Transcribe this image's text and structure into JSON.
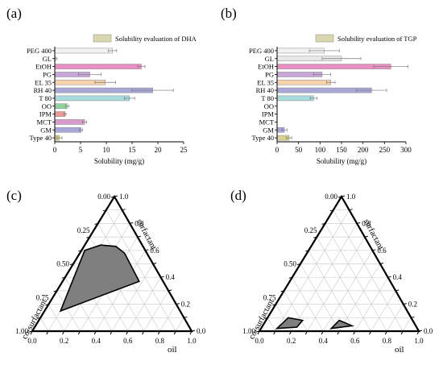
{
  "chart_data": [
    {
      "panel": "(a)",
      "type": "bar",
      "orientation": "horizontal",
      "legend": "Solubility evaluation of DHA",
      "legend_position": "top-right",
      "xlabel": "Solubility (mg/g)",
      "xlim": [
        0,
        25
      ],
      "xticks": [
        "0",
        "5",
        "10",
        "15",
        "20",
        "25"
      ],
      "categories": [
        "PEG 400",
        "GL",
        "EtOH",
        "PG",
        "EL 35",
        "RH 40",
        "T 80",
        "OO",
        "IPM",
        "MCT",
        "GM",
        "Type 40"
      ],
      "values": [
        11.2,
        0.15,
        16.8,
        6.8,
        9.8,
        19.0,
        14.5,
        2.4,
        2.0,
        5.8,
        5.1,
        0.9
      ],
      "errors": [
        0.8,
        0.3,
        0.7,
        2.2,
        2.0,
        4.0,
        1.0,
        0.3,
        0.2,
        0.4,
        0.3,
        0.5
      ],
      "colors": [
        "#f2f2f2",
        "#e8e8e8",
        "#ea8fc1",
        "#c8a6d8",
        "#f8d2ac",
        "#a9a7d6",
        "#a8dcdc",
        "#8fd39a",
        "#ea9a95",
        "#d89ccc",
        "#a9a7d9",
        "#d9d190"
      ]
    },
    {
      "panel": "(b)",
      "type": "bar",
      "orientation": "horizontal",
      "legend": "Solubility evaluation of TGP",
      "legend_position": "top-right",
      "xlabel": "Solubility (mg/g)",
      "xlim": [
        0,
        300
      ],
      "xticks": [
        "0",
        "50",
        "100",
        "150",
        "200",
        "250",
        "300"
      ],
      "categories": [
        "PEG 400",
        "GL",
        "EtOH",
        "PG",
        "EL 35",
        "RH 40",
        "T 80",
        "OO",
        "IPM",
        "MCT",
        "GM",
        "Type 40"
      ],
      "values": [
        110,
        150,
        265,
        105,
        125,
        220,
        85,
        0,
        0,
        0,
        17,
        28
      ],
      "errors": [
        35,
        45,
        40,
        20,
        10,
        35,
        8,
        0,
        0,
        0,
        6,
        6
      ],
      "colors": [
        "#f2f2f2",
        "#e8e8e8",
        "#ea8fc1",
        "#c8a6d8",
        "#f8d2ac",
        "#a9a7d6",
        "#a8dcdc",
        "#8fd39a",
        "#ea9a95",
        "#d89ccc",
        "#a9a7d9",
        "#d9d190"
      ]
    },
    {
      "panel": "(c)",
      "type": "ternary",
      "axes": {
        "top": "surfactant",
        "left": "co-surfactant",
        "right": "oil"
      },
      "ticks": [
        "0.00",
        "0.25",
        "0.50",
        "0.75",
        "1.00"
      ],
      "ticks_right": [
        "1.0",
        "0.8",
        "0.6",
        "0.4",
        "0.2",
        "0.0"
      ],
      "ticks_bottom": [
        "0.0",
        "0.2",
        "0.4",
        "0.6",
        "0.8",
        "1.0"
      ],
      "regions": [
        {
          "points": [
            {
              "oil": 0.1,
              "surfactant": 0.15,
              "cosurfactant": 0.75
            },
            {
              "oil": 0.02,
              "surfactant": 0.6,
              "cosurfactant": 0.38
            },
            {
              "oil": 0.1,
              "surfactant": 0.64,
              "cosurfactant": 0.26
            },
            {
              "oil": 0.2,
              "surfactant": 0.63,
              "cosurfactant": 0.17
            },
            {
              "oil": 0.28,
              "surfactant": 0.58,
              "cosurfactant": 0.14
            },
            {
              "oil": 0.48,
              "surfactant": 0.37,
              "cosurfactant": 0.15
            }
          ]
        }
      ]
    },
    {
      "panel": "(d)",
      "type": "ternary",
      "axes": {
        "top": "surfactant",
        "left": "co-surfactant",
        "right": "oil"
      },
      "ticks": [
        "0.00",
        "0.25",
        "0.50",
        "0.75",
        "1.00"
      ],
      "ticks_right": [
        "1.0",
        "0.8",
        "0.6",
        "0.4",
        "0.2",
        "0.0"
      ],
      "ticks_bottom": [
        "0.0",
        "0.2",
        "0.4",
        "0.6",
        "0.8",
        "1.0"
      ],
      "regions": [
        {
          "points": [
            {
              "oil": 0.1,
              "surfactant": 0.02,
              "cosurfactant": 0.88
            },
            {
              "oil": 0.13,
              "surfactant": 0.1,
              "cosurfactant": 0.77
            },
            {
              "oil": 0.23,
              "surfactant": 0.08,
              "cosurfactant": 0.69
            },
            {
              "oil": 0.22,
              "surfactant": 0.03,
              "cosurfactant": 0.75
            }
          ]
        },
        {
          "points": [
            {
              "oil": 0.44,
              "surfactant": 0.02,
              "cosurfactant": 0.54
            },
            {
              "oil": 0.46,
              "surfactant": 0.08,
              "cosurfactant": 0.46
            },
            {
              "oil": 0.56,
              "surfactant": 0.04,
              "cosurfactant": 0.4
            }
          ]
        }
      ]
    }
  ]
}
